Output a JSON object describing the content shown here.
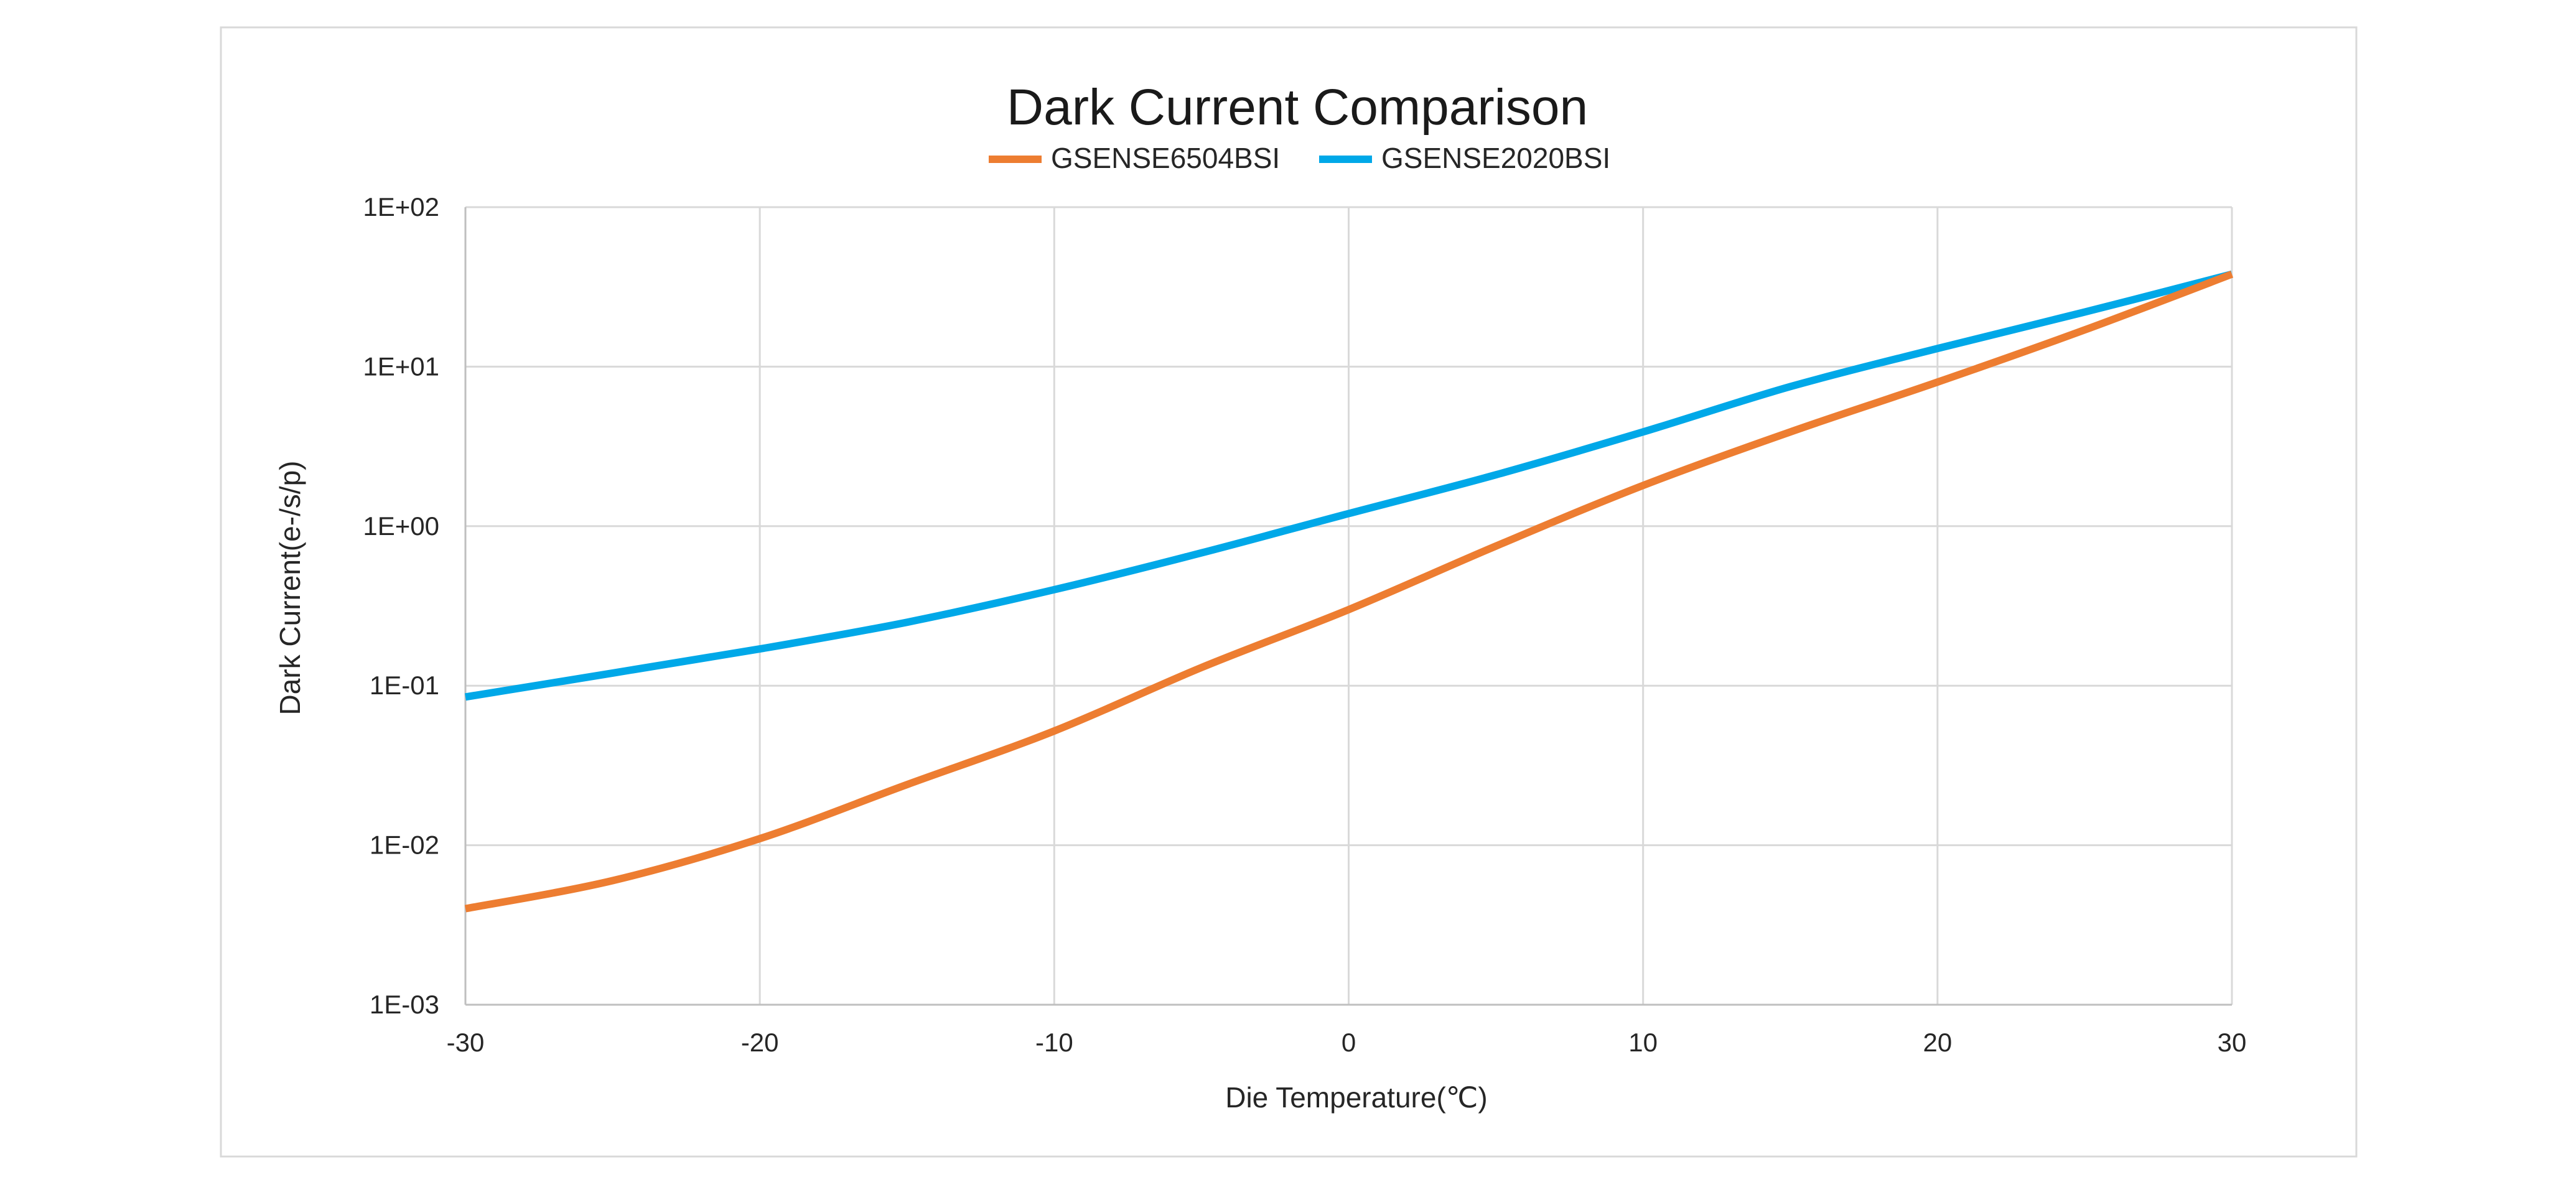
{
  "chart_data": {
    "type": "line",
    "title": "Dark Current Comparison",
    "xlabel": "Die Temperature(℃)",
    "ylabel": "Dark Current(e-/s/p)",
    "x_ticks": [
      "-30",
      "-20",
      "-10",
      "0",
      "10",
      "20",
      "30"
    ],
    "y_ticks": [
      "1E-03",
      "1E-02",
      "1E-01",
      "1E+00",
      "1E+01",
      "1E+02"
    ],
    "xlim": [
      -30,
      30
    ],
    "ylim": [
      0.001,
      100
    ],
    "y_scale": "log",
    "grid": true,
    "legend_position": "top-center",
    "x": [
      -30,
      -25,
      -20,
      -15,
      -10,
      -5,
      0,
      5,
      10,
      15,
      20,
      25,
      30
    ],
    "series": [
      {
        "name": "GSENSE6504BSI",
        "color": "#ed7d31",
        "values": [
          0.004,
          0.006,
          0.011,
          0.024,
          0.052,
          0.13,
          0.3,
          0.75,
          1.8,
          3.9,
          8.0,
          17.0,
          38.0
        ]
      },
      {
        "name": "GSENSE2020BSI",
        "color": "#00a8e8",
        "values": [
          0.085,
          0.12,
          0.17,
          0.25,
          0.4,
          0.68,
          1.2,
          2.1,
          3.9,
          7.5,
          13.0,
          22.0,
          38.0
        ]
      }
    ]
  }
}
